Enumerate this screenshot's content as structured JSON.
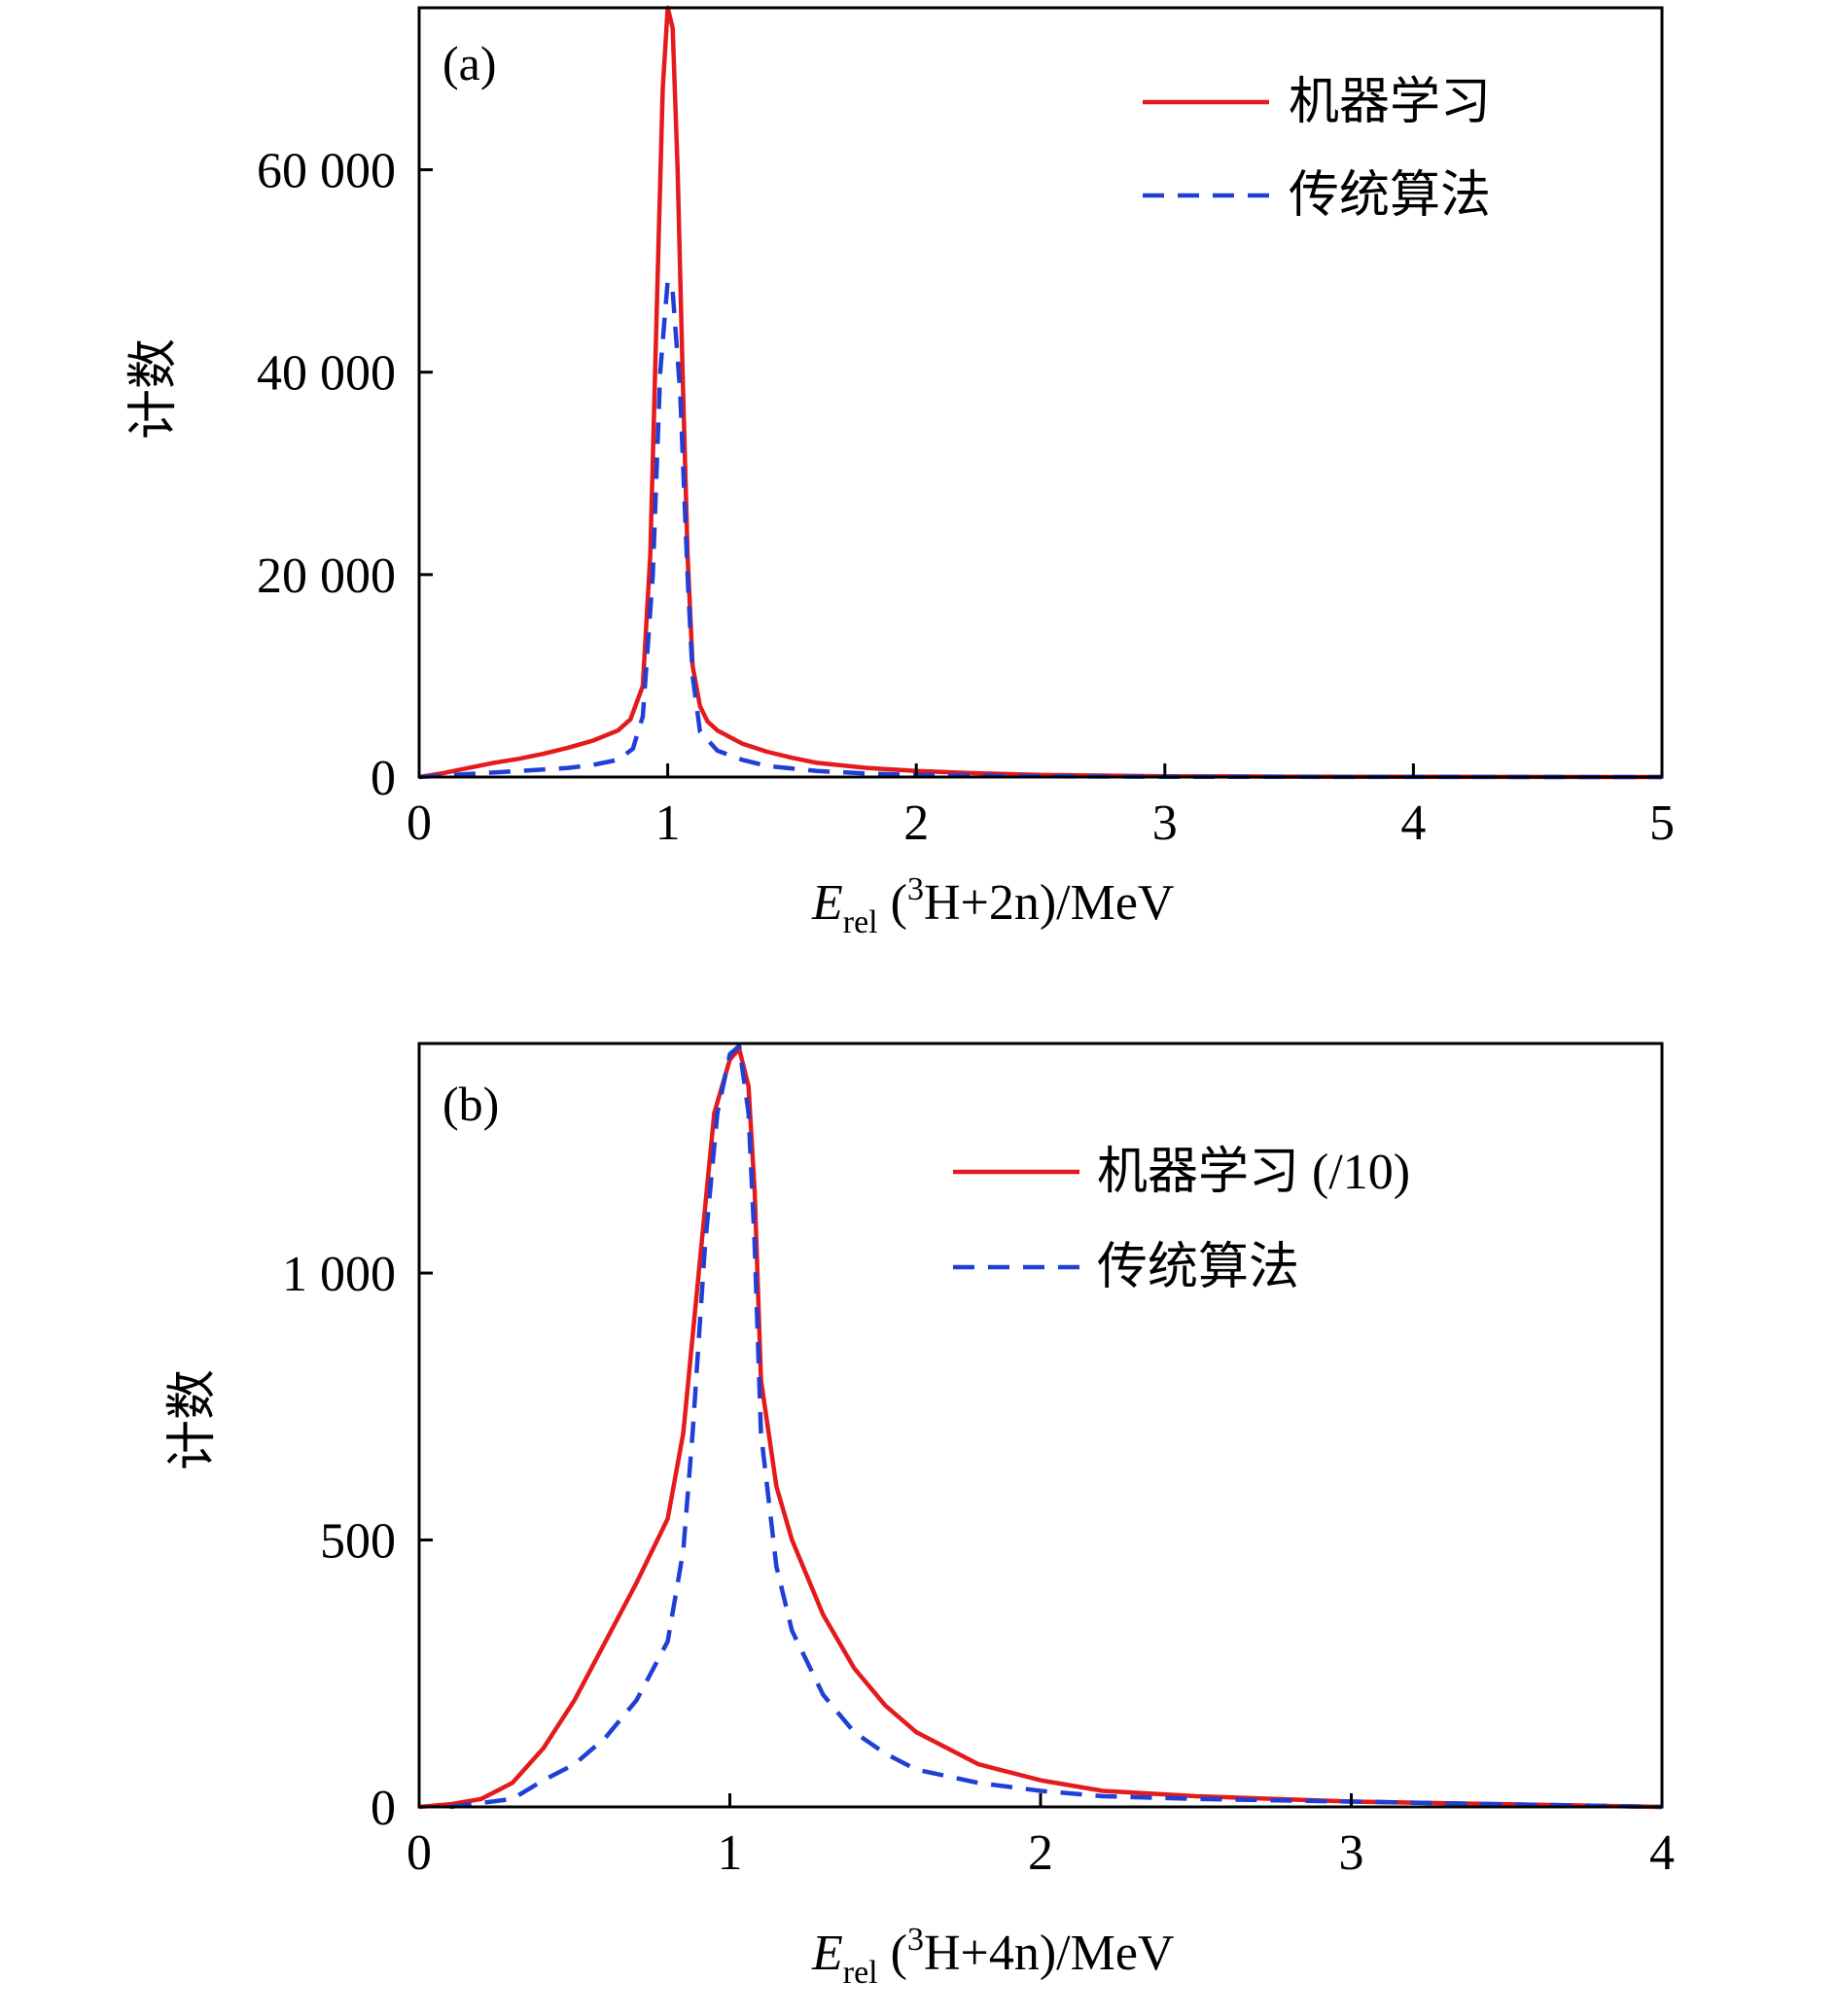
{
  "chart_data": [
    {
      "type": "line",
      "panel_label": "(a)",
      "xlabel": {
        "symbol": "E",
        "subscript": "rel",
        "open": " (",
        "superscript": "3",
        "rest": "H+2n)/MeV"
      },
      "ylabel": "计数",
      "xlim": [
        0,
        5
      ],
      "ylim": [
        0,
        76000
      ],
      "xticks": [
        0,
        1,
        2,
        3,
        4,
        5
      ],
      "xtick_labels": [
        "0",
        "1",
        "2",
        "3",
        "4",
        "5"
      ],
      "yticks": [
        0,
        20000,
        40000,
        60000
      ],
      "ytick_labels": [
        "0",
        "20 000",
        "40 000",
        "60 000"
      ],
      "legend_position": "top-right",
      "series": [
        {
          "name": "机器学习",
          "color": "#e41a1c",
          "style": "solid",
          "x": [
            0,
            0.1,
            0.2,
            0.3,
            0.4,
            0.5,
            0.6,
            0.7,
            0.8,
            0.85,
            0.9,
            0.93,
            0.96,
            0.98,
            1.0,
            1.02,
            1.04,
            1.06,
            1.08,
            1.1,
            1.13,
            1.16,
            1.2,
            1.3,
            1.4,
            1.5,
            1.6,
            1.8,
            2.0,
            2.2,
            2.5,
            3.0,
            3.5,
            4.0,
            4.5,
            5.0
          ],
          "y": [
            0,
            400,
            900,
            1400,
            1800,
            2300,
            2900,
            3600,
            4600,
            5700,
            9000,
            22000,
            50000,
            68000,
            76000,
            74000,
            60000,
            40000,
            22000,
            11000,
            7000,
            5500,
            4600,
            3300,
            2500,
            1900,
            1400,
            900,
            600,
            400,
            200,
            80,
            40,
            20,
            10,
            0
          ]
        },
        {
          "name": "传统算法",
          "color": "#1f3fd6",
          "style": "dashed",
          "x": [
            0,
            0.2,
            0.4,
            0.6,
            0.7,
            0.8,
            0.86,
            0.9,
            0.94,
            0.97,
            1.0,
            1.02,
            1.05,
            1.08,
            1.1,
            1.13,
            1.2,
            1.3,
            1.4,
            1.6,
            1.8,
            2.0,
            2.5,
            3.0,
            4.0,
            5.0
          ],
          "y": [
            0,
            300,
            600,
            900,
            1200,
            1700,
            2800,
            6000,
            20000,
            40000,
            49000,
            48000,
            38000,
            20000,
            10000,
            4500,
            2600,
            1700,
            1100,
            600,
            350,
            200,
            80,
            30,
            10,
            0
          ]
        }
      ]
    },
    {
      "type": "line",
      "panel_label": "(b)",
      "xlabel": {
        "symbol": "E",
        "subscript": "rel",
        "open": " (",
        "superscript": "3",
        "rest": "H+4n)/MeV"
      },
      "ylabel": "计数",
      "xlim": [
        0,
        4
      ],
      "ylim": [
        0,
        1430
      ],
      "xticks": [
        0,
        1,
        2,
        3,
        4
      ],
      "xtick_labels": [
        "0",
        "1",
        "2",
        "3",
        "4"
      ],
      "yticks": [
        0,
        500,
        1000
      ],
      "ytick_labels": [
        "0",
        "500",
        "1 000"
      ],
      "legend_position": "top-right",
      "series": [
        {
          "name": "机器学习 (/10)",
          "color": "#e41a1c",
          "style": "solid",
          "x": [
            0,
            0.1,
            0.2,
            0.3,
            0.4,
            0.5,
            0.6,
            0.7,
            0.8,
            0.85,
            0.9,
            0.95,
            1.0,
            1.03,
            1.06,
            1.08,
            1.1,
            1.15,
            1.2,
            1.3,
            1.4,
            1.5,
            1.6,
            1.8,
            2.0,
            2.2,
            2.5,
            3.0,
            3.5,
            4.0
          ],
          "y": [
            0,
            5,
            15,
            45,
            110,
            200,
            310,
            420,
            540,
            700,
            1000,
            1300,
            1400,
            1420,
            1350,
            1150,
            800,
            600,
            500,
            360,
            260,
            190,
            140,
            80,
            50,
            30,
            20,
            10,
            5,
            0
          ]
        },
        {
          "name": "传统算法",
          "color": "#1f3fd6",
          "style": "dashed",
          "x": [
            0.1,
            0.3,
            0.4,
            0.5,
            0.6,
            0.7,
            0.8,
            0.85,
            0.88,
            0.92,
            0.96,
            1.0,
            1.03,
            1.06,
            1.08,
            1.1,
            1.15,
            1.2,
            1.3,
            1.4,
            1.5,
            1.6,
            1.8,
            2.0,
            2.2,
            2.5,
            3.0,
            3.5,
            4.0
          ],
          "y": [
            0,
            15,
            50,
            80,
            130,
            200,
            310,
            480,
            700,
            1050,
            1300,
            1410,
            1425,
            1300,
            1050,
            700,
            450,
            330,
            210,
            140,
            100,
            70,
            45,
            30,
            20,
            15,
            10,
            5,
            0
          ]
        }
      ]
    }
  ]
}
